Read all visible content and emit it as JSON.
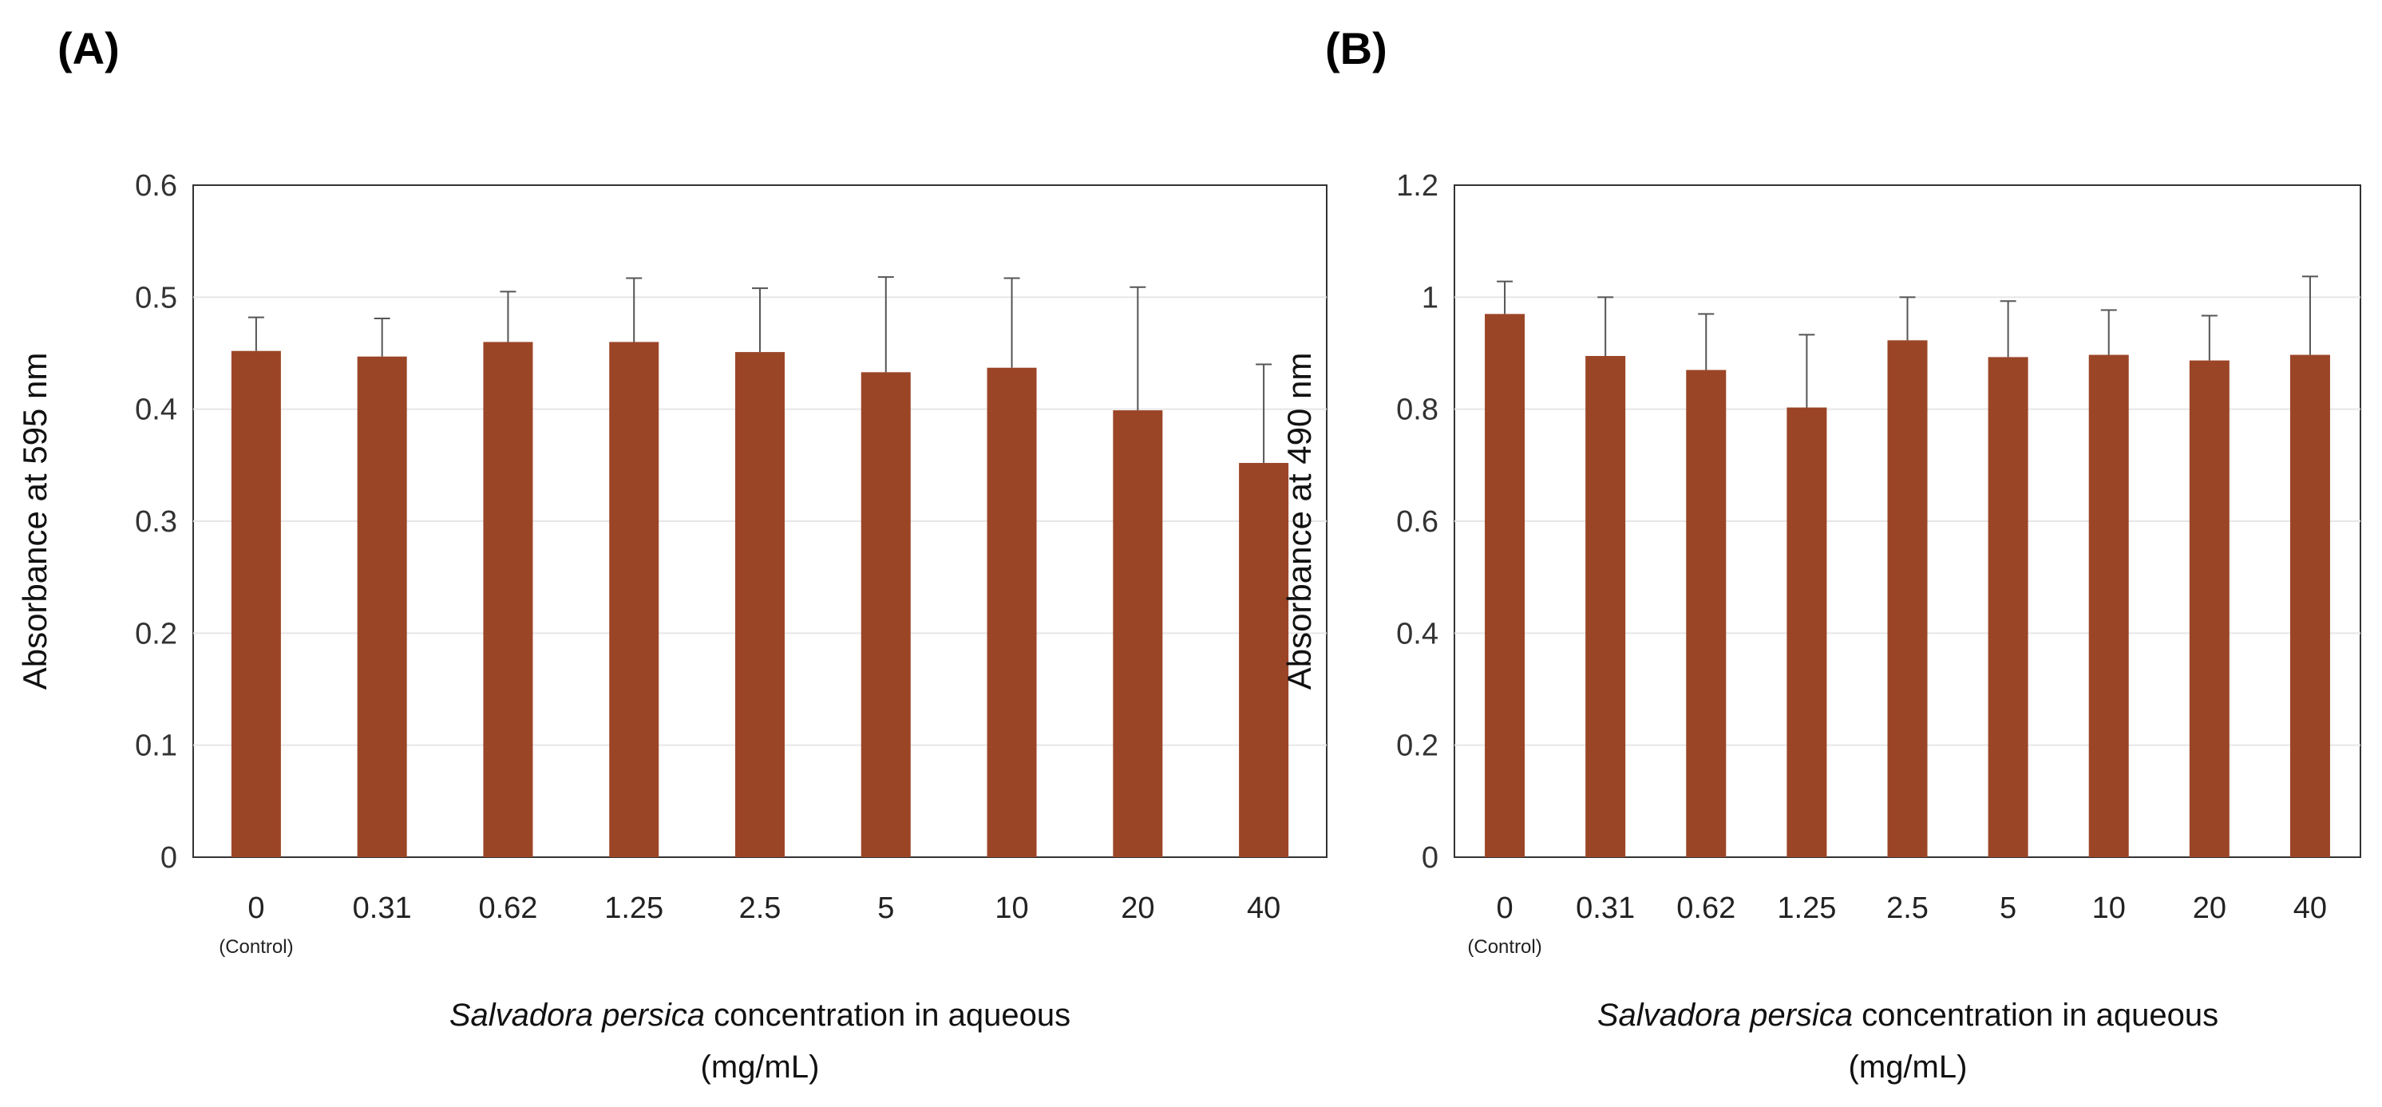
{
  "chart_data": [
    {
      "type": "bar",
      "panel": "(A)",
      "categories": [
        "0",
        "0.31",
        "0.62",
        "1.25",
        "2.5",
        "5",
        "10",
        "20",
        "40"
      ],
      "category_sublabels": [
        "(Control)",
        "",
        "",
        "",
        "",
        "",
        "",
        "",
        ""
      ],
      "values": [
        0.452,
        0.447,
        0.46,
        0.46,
        0.451,
        0.433,
        0.437,
        0.399,
        0.352
      ],
      "errors": [
        0.03,
        0.034,
        0.045,
        0.057,
        0.057,
        0.085,
        0.08,
        0.11,
        0.088
      ],
      "ylabel": "Absorbance at 595 nm",
      "xlabel_italic": "Salvadora persica",
      "xlabel_rest": " concentration in aqueous",
      "xlabel_line2": "(mg/mL)",
      "ylim": [
        0,
        0.6
      ],
      "yticks": [
        0,
        0.1,
        0.2,
        0.3,
        0.4,
        0.5,
        0.6
      ],
      "ytick_labels": [
        "0",
        "0.1",
        "0.2",
        "0.3",
        "0.4",
        "0.5",
        "0.6"
      ],
      "bar_color": "#9B4527",
      "grid": true
    },
    {
      "type": "bar",
      "panel": "(B)",
      "categories": [
        "0",
        "0.31",
        "0.62",
        "1.25",
        "2.5",
        "5",
        "10",
        "20",
        "40"
      ],
      "category_sublabels": [
        "(Control)",
        "",
        "",
        "",
        "",
        "",
        "",
        "",
        ""
      ],
      "values": [
        0.97,
        0.895,
        0.87,
        0.803,
        0.923,
        0.893,
        0.897,
        0.887,
        0.897
      ],
      "errors": [
        0.058,
        0.105,
        0.1,
        0.13,
        0.077,
        0.1,
        0.08,
        0.08,
        0.14
      ],
      "ylabel": "Absorbance at 490 nm",
      "xlabel_italic": "Salvadora persica",
      "xlabel_rest": " concentration in aqueous",
      "xlabel_line2": "(mg/mL)",
      "ylim": [
        0,
        1.2
      ],
      "yticks": [
        0,
        0.2,
        0.4,
        0.6,
        0.8,
        1.0,
        1.2
      ],
      "ytick_labels": [
        "0",
        "0.2",
        "0.4",
        "0.6",
        "0.8",
        "1",
        "1.2"
      ],
      "bar_color": "#9B4527",
      "grid": true
    }
  ]
}
